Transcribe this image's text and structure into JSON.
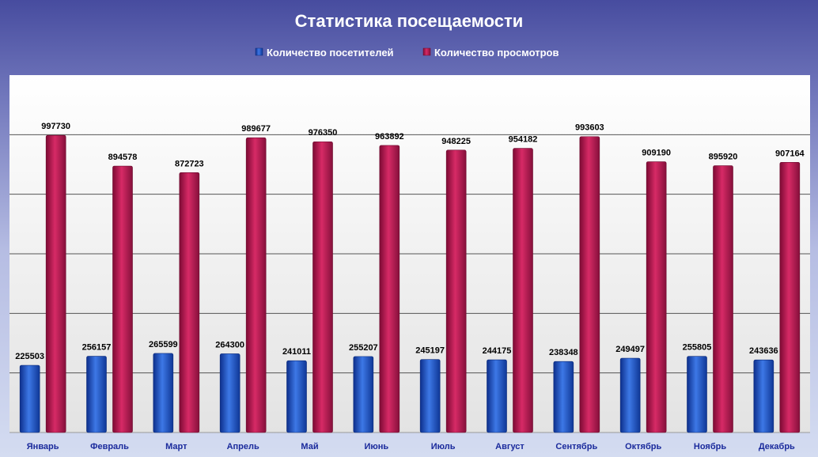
{
  "chart_data": {
    "type": "bar",
    "title": "Статистика посещаемости",
    "legend_position": "top",
    "grid": true,
    "ylim": [
      0,
      1200000
    ],
    "y_gridline_step": 200000,
    "categories": [
      "Январь",
      "Февраль",
      "Март",
      "Апрель",
      "Май",
      "Июнь",
      "Июль",
      "Август",
      "Сентябрь",
      "Октябрь",
      "Ноябрь",
      "Декабрь"
    ],
    "series": [
      {
        "name": "Количество посетителей",
        "color": "#1f55c8",
        "values": [
          225503,
          256157,
          265599,
          264300,
          241011,
          255207,
          245197,
          244175,
          238348,
          249497,
          255805,
          243636
        ]
      },
      {
        "name": "Количество просмотров",
        "color": "#b0164e",
        "values": [
          997730,
          894578,
          872723,
          989677,
          976350,
          963892,
          948225,
          954182,
          993603,
          909190,
          895920,
          907164
        ]
      }
    ]
  }
}
